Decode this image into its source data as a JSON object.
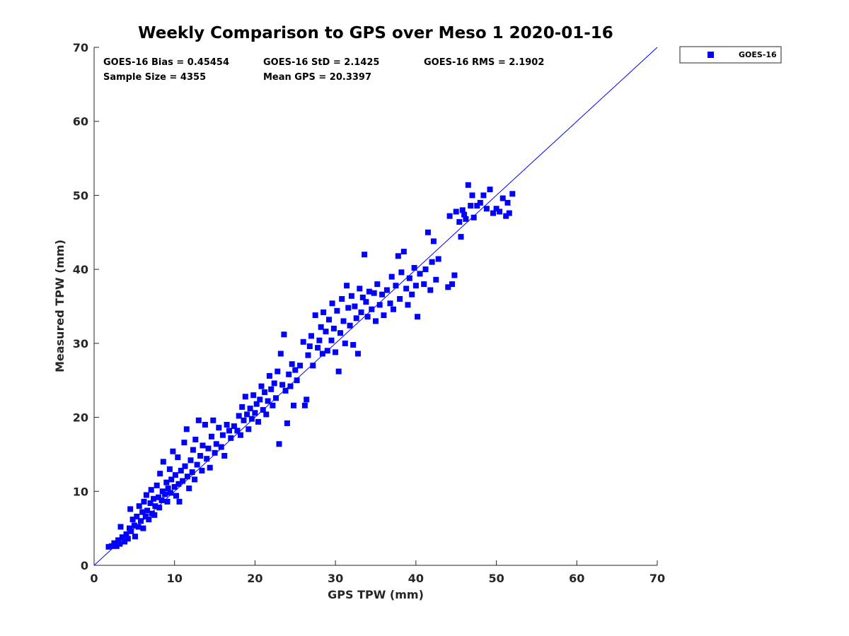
{
  "chart_data": {
    "type": "scatter",
    "title": "Weekly Comparison to GPS over Meso 1 2020-01-16",
    "xlabel": "GPS TPW (mm)",
    "ylabel": "Measured TPW (mm)",
    "xlim": [
      0,
      70
    ],
    "ylim": [
      0,
      70
    ],
    "xticks": [
      "0",
      "10",
      "20",
      "30",
      "40",
      "50",
      "60",
      "70"
    ],
    "yticks": [
      "0",
      "10",
      "20",
      "30",
      "40",
      "50",
      "60",
      "70"
    ],
    "grid": false,
    "legend_position": "top-right",
    "reference_line": {
      "label": "1:1 line",
      "x": [
        0,
        70
      ],
      "y": [
        0,
        70
      ]
    },
    "stats": {
      "bias": "GOES-16 Bias = 0.45454",
      "std": "GOES-16 StD = 2.1425",
      "rms": "GOES-16 RMS = 2.1902",
      "sample": "Sample Size = 4355",
      "mean": "Mean GPS = 20.3397"
    },
    "series": [
      {
        "name": "GOES-16",
        "color": "#0000ff",
        "marker": "square",
        "points": [
          [
            1.8,
            2.5
          ],
          [
            2.2,
            2.6
          ],
          [
            2.5,
            3.0
          ],
          [
            2.8,
            2.6
          ],
          [
            3.0,
            3.4
          ],
          [
            3.2,
            2.9
          ],
          [
            3.5,
            3.8
          ],
          [
            3.3,
            5.2
          ],
          [
            3.8,
            3.2
          ],
          [
            4.0,
            4.2
          ],
          [
            4.2,
            3.6
          ],
          [
            4.4,
            5.0
          ],
          [
            4.5,
            7.6
          ],
          [
            4.6,
            4.6
          ],
          [
            4.8,
            6.2
          ],
          [
            5.0,
            5.4
          ],
          [
            5.1,
            3.9
          ],
          [
            5.3,
            6.6
          ],
          [
            5.5,
            5.2
          ],
          [
            5.6,
            8.0
          ],
          [
            5.8,
            6.0
          ],
          [
            6.0,
            7.2
          ],
          [
            6.1,
            5.0
          ],
          [
            6.2,
            8.6
          ],
          [
            6.4,
            6.6
          ],
          [
            6.5,
            9.5
          ],
          [
            6.6,
            7.4
          ],
          [
            6.8,
            6.2
          ],
          [
            7.0,
            8.4
          ],
          [
            7.1,
            10.2
          ],
          [
            7.2,
            7.0
          ],
          [
            7.4,
            9.0
          ],
          [
            7.5,
            6.8
          ],
          [
            7.6,
            8.0
          ],
          [
            7.8,
            10.8
          ],
          [
            8.0,
            9.2
          ],
          [
            8.1,
            7.8
          ],
          [
            8.2,
            12.4
          ],
          [
            8.4,
            8.8
          ],
          [
            8.5,
            10.0
          ],
          [
            8.6,
            14.0
          ],
          [
            8.8,
            9.6
          ],
          [
            9.0,
            11.2
          ],
          [
            9.1,
            8.6
          ],
          [
            9.2,
            10.4
          ],
          [
            9.4,
            13.0
          ],
          [
            9.5,
            9.8
          ],
          [
            9.6,
            11.6
          ],
          [
            9.8,
            15.4
          ],
          [
            10.0,
            10.6
          ],
          [
            10.1,
            12.2
          ],
          [
            10.2,
            9.4
          ],
          [
            10.4,
            14.6
          ],
          [
            10.5,
            11.0
          ],
          [
            10.6,
            8.6
          ],
          [
            10.8,
            12.8
          ],
          [
            11.0,
            11.4
          ],
          [
            11.2,
            16.6
          ],
          [
            11.3,
            13.4
          ],
          [
            11.5,
            18.4
          ],
          [
            11.6,
            12.0
          ],
          [
            11.8,
            10.4
          ],
          [
            12.0,
            14.2
          ],
          [
            12.2,
            12.6
          ],
          [
            12.3,
            15.6
          ],
          [
            12.5,
            11.6
          ],
          [
            12.6,
            17.0
          ],
          [
            12.8,
            13.6
          ],
          [
            13.0,
            19.6
          ],
          [
            13.2,
            14.8
          ],
          [
            13.4,
            12.8
          ],
          [
            13.5,
            16.2
          ],
          [
            13.8,
            19.0
          ],
          [
            14.0,
            14.4
          ],
          [
            14.2,
            15.8
          ],
          [
            14.4,
            13.2
          ],
          [
            14.6,
            17.4
          ],
          [
            14.8,
            19.6
          ],
          [
            15.0,
            15.2
          ],
          [
            15.2,
            16.4
          ],
          [
            15.5,
            18.6
          ],
          [
            15.8,
            16.0
          ],
          [
            16.0,
            17.6
          ],
          [
            16.2,
            14.8
          ],
          [
            16.5,
            19.0
          ],
          [
            16.8,
            18.2
          ],
          [
            17.0,
            17.2
          ],
          [
            17.4,
            18.8
          ],
          [
            17.8,
            18.2
          ],
          [
            18.0,
            20.2
          ],
          [
            18.2,
            17.6
          ],
          [
            18.4,
            21.4
          ],
          [
            18.6,
            19.6
          ],
          [
            18.8,
            22.8
          ],
          [
            19.0,
            20.4
          ],
          [
            19.2,
            18.4
          ],
          [
            19.4,
            21.2
          ],
          [
            19.6,
            19.8
          ],
          [
            19.8,
            23.0
          ],
          [
            20.0,
            20.6
          ],
          [
            20.2,
            21.8
          ],
          [
            20.4,
            19.4
          ],
          [
            20.6,
            22.4
          ],
          [
            20.8,
            24.2
          ],
          [
            21.0,
            21.0
          ],
          [
            21.2,
            23.4
          ],
          [
            21.4,
            20.4
          ],
          [
            21.6,
            22.2
          ],
          [
            21.8,
            25.6
          ],
          [
            22.0,
            23.8
          ],
          [
            22.2,
            21.6
          ],
          [
            22.4,
            24.6
          ],
          [
            22.6,
            22.6
          ],
          [
            22.8,
            26.2
          ],
          [
            23.0,
            16.4
          ],
          [
            23.2,
            28.6
          ],
          [
            23.4,
            24.4
          ],
          [
            23.6,
            31.2
          ],
          [
            23.8,
            23.6
          ],
          [
            24.0,
            19.2
          ],
          [
            24.2,
            25.8
          ],
          [
            24.4,
            24.2
          ],
          [
            24.6,
            27.2
          ],
          [
            24.8,
            21.6
          ],
          [
            25.0,
            26.4
          ],
          [
            25.2,
            25.0
          ],
          [
            25.6,
            27.0
          ],
          [
            26.0,
            30.2
          ],
          [
            26.2,
            21.6
          ],
          [
            26.4,
            22.4
          ],
          [
            26.6,
            28.4
          ],
          [
            26.8,
            29.6
          ],
          [
            27.0,
            31.0
          ],
          [
            27.2,
            27.0
          ],
          [
            27.5,
            33.8
          ],
          [
            27.8,
            29.4
          ],
          [
            28.0,
            30.4
          ],
          [
            28.2,
            32.2
          ],
          [
            28.4,
            28.6
          ],
          [
            28.5,
            34.2
          ],
          [
            28.8,
            31.6
          ],
          [
            29.0,
            29.0
          ],
          [
            29.2,
            33.2
          ],
          [
            29.5,
            30.4
          ],
          [
            29.6,
            35.4
          ],
          [
            29.8,
            32.0
          ],
          [
            30.0,
            28.8
          ],
          [
            30.2,
            34.4
          ],
          [
            30.4,
            26.2
          ],
          [
            30.6,
            31.4
          ],
          [
            30.8,
            36.0
          ],
          [
            31.0,
            33.0
          ],
          [
            31.2,
            30.0
          ],
          [
            31.4,
            37.8
          ],
          [
            31.6,
            34.8
          ],
          [
            31.8,
            32.4
          ],
          [
            32.0,
            36.4
          ],
          [
            32.2,
            29.8
          ],
          [
            32.4,
            35.0
          ],
          [
            32.6,
            33.4
          ],
          [
            32.8,
            28.6
          ],
          [
            33.0,
            37.4
          ],
          [
            33.2,
            34.2
          ],
          [
            33.4,
            36.2
          ],
          [
            33.6,
            42.0
          ],
          [
            33.8,
            35.6
          ],
          [
            34.0,
            33.6
          ],
          [
            34.2,
            37.0
          ],
          [
            34.5,
            34.6
          ],
          [
            34.8,
            36.8
          ],
          [
            35.0,
            33.0
          ],
          [
            35.2,
            38.0
          ],
          [
            35.5,
            35.2
          ],
          [
            35.8,
            36.6
          ],
          [
            36.0,
            33.8
          ],
          [
            36.4,
            37.2
          ],
          [
            36.8,
            35.4
          ],
          [
            37.0,
            39.0
          ],
          [
            37.2,
            34.6
          ],
          [
            37.5,
            37.8
          ],
          [
            37.8,
            41.8
          ],
          [
            38.0,
            36.0
          ],
          [
            38.2,
            39.6
          ],
          [
            38.5,
            42.4
          ],
          [
            38.8,
            37.4
          ],
          [
            39.0,
            35.2
          ],
          [
            39.2,
            38.8
          ],
          [
            39.5,
            36.6
          ],
          [
            39.8,
            40.2
          ],
          [
            40.0,
            37.8
          ],
          [
            40.2,
            33.6
          ],
          [
            40.5,
            39.4
          ],
          [
            41.0,
            38.0
          ],
          [
            41.2,
            40.0
          ],
          [
            41.5,
            45.0
          ],
          [
            41.8,
            37.2
          ],
          [
            42.0,
            41.0
          ],
          [
            42.2,
            43.8
          ],
          [
            42.5,
            38.6
          ],
          [
            42.8,
            41.4
          ],
          [
            44.0,
            37.6
          ],
          [
            44.5,
            38.0
          ],
          [
            44.8,
            39.2
          ],
          [
            44.2,
            47.2
          ],
          [
            45.0,
            47.8
          ],
          [
            45.4,
            46.4
          ],
          [
            45.6,
            44.4
          ],
          [
            45.8,
            48.0
          ],
          [
            46.0,
            47.4
          ],
          [
            46.2,
            46.8
          ],
          [
            46.5,
            51.4
          ],
          [
            46.8,
            48.6
          ],
          [
            47.0,
            50.0
          ],
          [
            47.2,
            47.0
          ],
          [
            47.6,
            48.6
          ],
          [
            48.0,
            49.0
          ],
          [
            48.4,
            50.0
          ],
          [
            48.8,
            48.2
          ],
          [
            49.2,
            50.8
          ],
          [
            49.6,
            47.6
          ],
          [
            50.0,
            48.2
          ],
          [
            50.4,
            47.8
          ],
          [
            50.8,
            49.6
          ],
          [
            51.2,
            47.2
          ],
          [
            51.4,
            49.0
          ],
          [
            51.6,
            47.6
          ],
          [
            52.0,
            50.2
          ]
        ]
      }
    ]
  }
}
